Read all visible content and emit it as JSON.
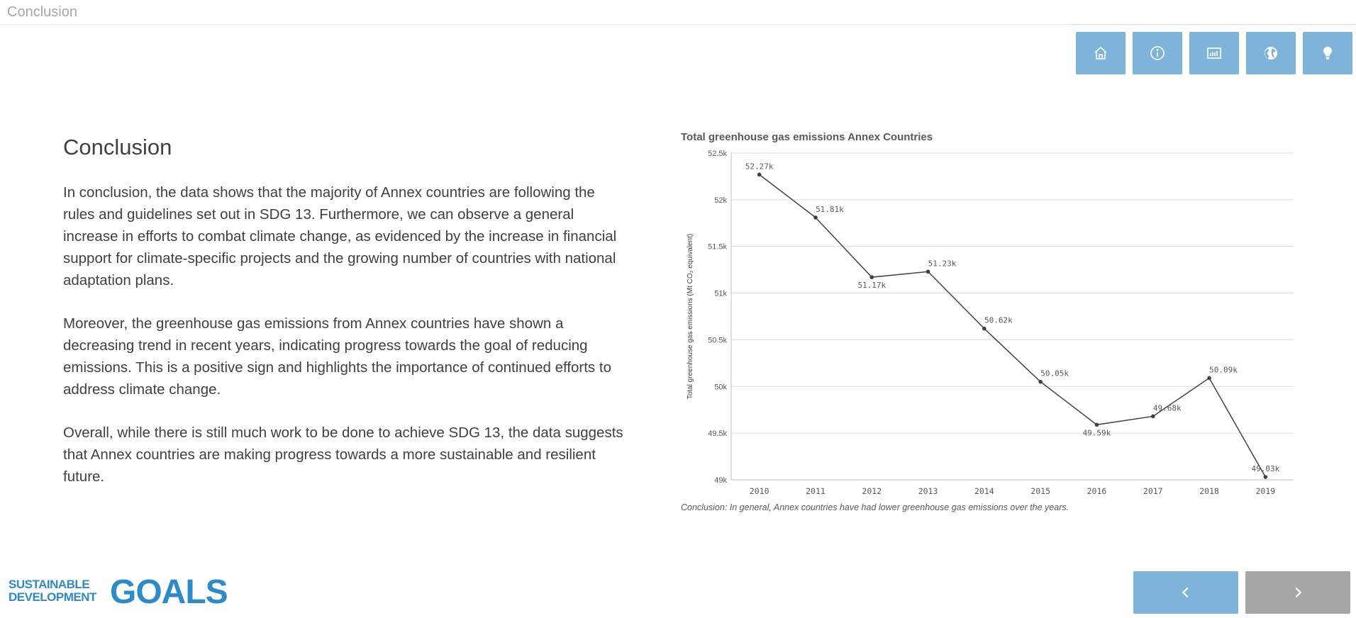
{
  "page": {
    "tab_title": "Conclusion"
  },
  "nav": {
    "buttons": [
      {
        "icon": "home-icon"
      },
      {
        "icon": "info-icon"
      },
      {
        "icon": "bar-chart-icon"
      },
      {
        "icon": "globe-icon"
      },
      {
        "icon": "lightbulb-icon"
      }
    ],
    "color": "#7fb4da"
  },
  "content": {
    "heading": "Conclusion",
    "paragraphs": [
      "In conclusion, the data shows that the majority of Annex countries are following the rules and guidelines set out in SDG 13. Furthermore, we can observe a general increase in efforts to combat climate change, as evidenced by the increase in financial support for climate-specific projects and the growing number of countries with national adaptation plans.",
      "Moreover, the greenhouse gas emissions from Annex countries have shown a decreasing trend in recent years, indicating progress towards the goal of reducing emissions. This is a positive sign and highlights the importance of continued efforts to address climate change.",
      "Overall, while there is still much work to be done to achieve SDG 13, the data suggests that Annex countries are making progress towards a more sustainable and resilient future."
    ]
  },
  "chart_data": {
    "type": "line",
    "title": "Total greenhouse gas emissions Annex Countries",
    "ylabel": "Total greenhouse gas emissions (Mt CO₂ equivalent)",
    "xlabel": "",
    "categories": [
      "2010",
      "2011",
      "2012",
      "2013",
      "2014",
      "2015",
      "2016",
      "2017",
      "2018",
      "2019"
    ],
    "values": [
      52270,
      51810,
      51170,
      51230,
      50620,
      50050,
      49590,
      49680,
      50090,
      49030
    ],
    "data_labels": [
      "52.27k",
      "51.81k",
      "51.17k",
      "51.23k",
      "50.62k",
      "50.05k",
      "49.59k",
      "49.68k",
      "50.09k",
      "49.03k"
    ],
    "ylim": [
      49000,
      52500
    ],
    "yticks": [
      49000,
      49500,
      50000,
      50500,
      51000,
      51500,
      52000,
      52500
    ],
    "ytick_labels": [
      "49k",
      "49.5k",
      "50k",
      "50.5k",
      "51k",
      "51.5k",
      "52k",
      "52.5k"
    ],
    "grid": true,
    "line_color": "#404040"
  },
  "chart_caption": "Conclusion: In general, Annex countries have had lower greenhouse gas emissions over the years.",
  "logo": {
    "line1": "SUSTAINABLE",
    "line2": "DEVELOPMENT",
    "goals": "GOALS"
  },
  "pager": {
    "prev_icon": "chevron-left-icon",
    "next_icon": "chevron-right-icon"
  }
}
